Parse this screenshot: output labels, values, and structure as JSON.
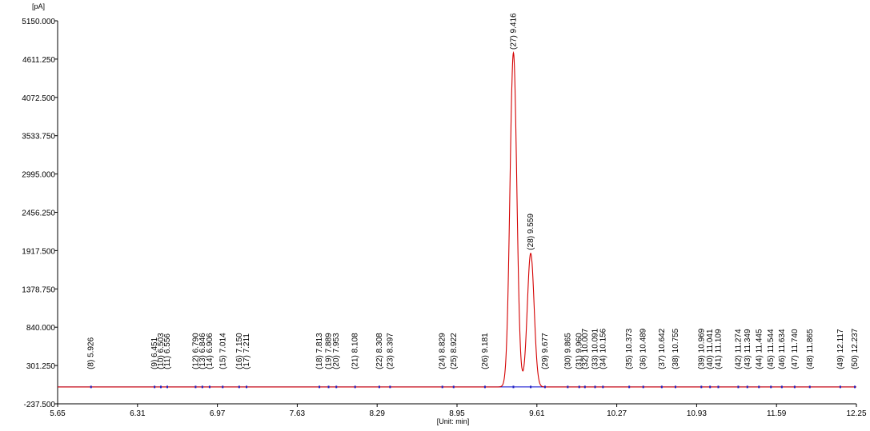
{
  "chart_data": {
    "type": "line",
    "y_unit_label": "[pA]",
    "x_unit_label": "[Unit: min]",
    "xlim": [
      5.65,
      12.25
    ],
    "ylim": [
      -237.5,
      5150.0
    ],
    "x_ticks": [
      "5.65",
      "6.31",
      "6.97",
      "7.63",
      "8.29",
      "8.95",
      "9.61",
      "10.27",
      "10.93",
      "11.59",
      "12.25"
    ],
    "y_ticks": [
      "-237.500",
      "301.250",
      "840.000",
      "1378.750",
      "1917.500",
      "2456.250",
      "2995.000",
      "3533.750",
      "4072.500",
      "4611.250",
      "5150.000"
    ],
    "baseline": 0,
    "peaks": [
      {
        "label": "(8) 5.926",
        "rt": 5.926,
        "height": 0
      },
      {
        "label": "(9) 6.451",
        "rt": 6.451,
        "height": 0
      },
      {
        "label": "(10) 6.503",
        "rt": 6.503,
        "height": 0
      },
      {
        "label": "(11) 6.556",
        "rt": 6.556,
        "height": 0
      },
      {
        "label": "(12) 6.790",
        "rt": 6.79,
        "height": 0
      },
      {
        "label": "(13) 6.846",
        "rt": 6.846,
        "height": 0
      },
      {
        "label": "(14) 6.906",
        "rt": 6.906,
        "height": 0
      },
      {
        "label": "(15) 7.014",
        "rt": 7.014,
        "height": 0
      },
      {
        "label": "(16) 7.150",
        "rt": 7.15,
        "height": 0
      },
      {
        "label": "(17) 7.211",
        "rt": 7.211,
        "height": 0
      },
      {
        "label": "(18) 7.813",
        "rt": 7.813,
        "height": 0
      },
      {
        "label": "(19) 7.889",
        "rt": 7.889,
        "height": 0
      },
      {
        "label": "(20) 7.953",
        "rt": 7.953,
        "height": 0
      },
      {
        "label": "(21) 8.108",
        "rt": 8.108,
        "height": 0
      },
      {
        "label": "(22) 8.308",
        "rt": 8.308,
        "height": 0
      },
      {
        "label": "(23) 8.397",
        "rt": 8.397,
        "height": 0
      },
      {
        "label": "(24) 8.829",
        "rt": 8.829,
        "height": 0
      },
      {
        "label": "(25) 8.922",
        "rt": 8.922,
        "height": 0
      },
      {
        "label": "(26) 9.181",
        "rt": 9.181,
        "height": 0
      },
      {
        "label": "(27) 9.416",
        "rt": 9.416,
        "height": 4700
      },
      {
        "label": "(28) 9.559",
        "rt": 9.559,
        "height": 1880
      },
      {
        "label": "(29) 9.677",
        "rt": 9.677,
        "height": 0
      },
      {
        "label": "(30) 9.865",
        "rt": 9.865,
        "height": 0
      },
      {
        "label": "(31) 9.960",
        "rt": 9.96,
        "height": 0
      },
      {
        "label": "(32) 10.007",
        "rt": 10.007,
        "height": 0
      },
      {
        "label": "(33) 10.091",
        "rt": 10.091,
        "height": 0
      },
      {
        "label": "(34) 10.156",
        "rt": 10.156,
        "height": 0
      },
      {
        "label": "(35) 10.373",
        "rt": 10.373,
        "height": 0
      },
      {
        "label": "(36) 10.489",
        "rt": 10.489,
        "height": 0
      },
      {
        "label": "(37) 10.642",
        "rt": 10.642,
        "height": 0
      },
      {
        "label": "(38) 10.755",
        "rt": 10.755,
        "height": 0
      },
      {
        "label": "(39) 10.969",
        "rt": 10.969,
        "height": 0
      },
      {
        "label": "(40) 11.041",
        "rt": 11.041,
        "height": 0
      },
      {
        "label": "(41) 11.109",
        "rt": 11.109,
        "height": 0
      },
      {
        "label": "(42) 11.274",
        "rt": 11.274,
        "height": 0
      },
      {
        "label": "(43) 11.349",
        "rt": 11.349,
        "height": 0
      },
      {
        "label": "(44) 11.445",
        "rt": 11.445,
        "height": 0
      },
      {
        "label": "(45) 11.544",
        "rt": 11.544,
        "height": 0
      },
      {
        "label": "(46) 11.634",
        "rt": 11.634,
        "height": 0
      },
      {
        "label": "(47) 11.740",
        "rt": 11.74,
        "height": 0
      },
      {
        "label": "(48) 11.865",
        "rt": 11.865,
        "height": 0
      },
      {
        "label": "(49) 12.117",
        "rt": 12.117,
        "height": 0
      },
      {
        "label": "(50) 12.237",
        "rt": 12.237,
        "height": 0
      }
    ],
    "colors": {
      "trace": "#d40000",
      "baseline": "#0000cc",
      "axis": "#000000",
      "peak_marker": "#2020c0"
    }
  }
}
